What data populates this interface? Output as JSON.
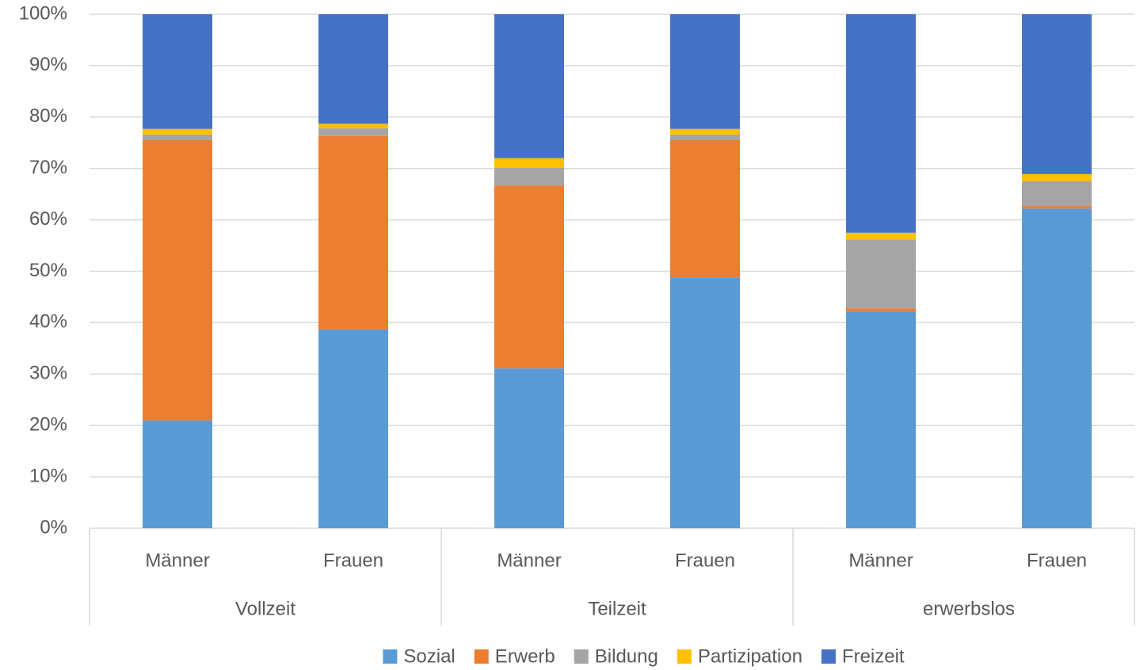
{
  "chart_data": {
    "type": "stacked_bar",
    "groups": [
      "Vollzeit",
      "Teilzeit",
      "erwerbslos"
    ],
    "categories": [
      "Männer",
      "Frauen",
      "Männer",
      "Frauen",
      "Männer",
      "Frauen"
    ],
    "series": [
      {
        "name": "Sozial",
        "color": "#5b9bd5",
        "values": [
          21.0,
          38.7,
          31.1,
          48.8,
          42.2,
          62.2
        ]
      },
      {
        "name": "Erwerb",
        "color": "#ed7d31",
        "values": [
          54.5,
          37.6,
          35.6,
          26.7,
          0.6,
          0.5
        ]
      },
      {
        "name": "Bildung",
        "color": "#a5a5a5",
        "values": [
          1.1,
          1.5,
          3.4,
          1.1,
          13.4,
          4.8
        ]
      },
      {
        "name": "Partizipation",
        "color": "#ffc000",
        "values": [
          1.1,
          0.9,
          1.9,
          1.1,
          1.3,
          1.4
        ]
      },
      {
        "name": "Freizeit",
        "color": "#4472c4",
        "values": [
          22.3,
          21.3,
          28.0,
          22.3,
          42.5,
          31.1
        ]
      }
    ],
    "ylim": [
      0,
      100
    ],
    "yticks": [
      {
        "value": 0,
        "label": "0%"
      },
      {
        "value": 10,
        "label": "10%"
      },
      {
        "value": 20,
        "label": "20%"
      },
      {
        "value": 30,
        "label": "30%"
      },
      {
        "value": 40,
        "label": "40%"
      },
      {
        "value": 50,
        "label": "50%"
      },
      {
        "value": 60,
        "label": "60%"
      },
      {
        "value": 70,
        "label": "70%"
      },
      {
        "value": 80,
        "label": "80%"
      },
      {
        "value": 90,
        "label": "90%"
      },
      {
        "value": 100,
        "label": "100%"
      }
    ],
    "grid": true,
    "legend": "bottom"
  }
}
